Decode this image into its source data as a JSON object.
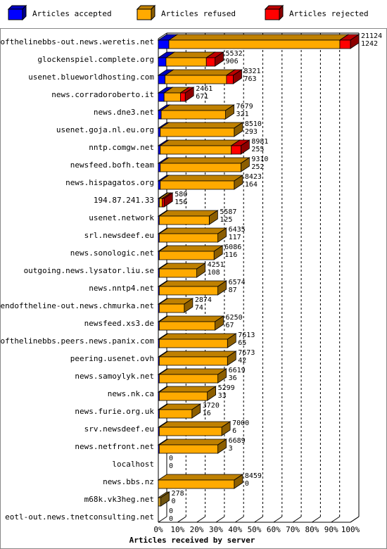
{
  "chart_data": {
    "type": "bar",
    "orientation": "horizontal",
    "stacked": true,
    "style": "3d",
    "title": "",
    "xlabel": "Articles received by server",
    "ylabel": "",
    "xlim": [
      0,
      100
    ],
    "x_ticks": [
      "0%",
      "10%",
      "20%",
      "30%",
      "40%",
      "50%",
      "60%",
      "70%",
      "80%",
      "90%",
      "100%"
    ],
    "grid": "vertical dashed",
    "legend_position": "top",
    "legend": [
      {
        "label": "Articles accepted",
        "color": "#0000ff"
      },
      {
        "label": "Articles refused",
        "color": "#ffaa00"
      },
      {
        "label": "Articles rejected",
        "color": "#ff0000"
      }
    ],
    "rows": [
      {
        "server": "endofthelinebbs-out.news.weretis.net",
        "accepted_pct": 5.5,
        "refused_pct": 89.0,
        "rejected_pct": 5.5,
        "top_label": "21124",
        "bottom_label": "1242"
      },
      {
        "server": "glockenspiel.complete.org",
        "accepted_pct": 4.0,
        "refused_pct": 21.0,
        "rejected_pct": 4.5,
        "top_label": "5532",
        "bottom_label": "906"
      },
      {
        "server": "usenet.blueworldhosting.com",
        "accepted_pct": 3.5,
        "refused_pct": 32.0,
        "rejected_pct": 3.5,
        "top_label": "8321",
        "bottom_label": "763"
      },
      {
        "server": "news.corradoroberto.it",
        "accepted_pct": 3.0,
        "refused_pct": 8.5,
        "rejected_pct": 2.5,
        "top_label": "2461",
        "bottom_label": "671"
      },
      {
        "server": "news.dne3.net",
        "accepted_pct": 1.5,
        "refused_pct": 33.5,
        "rejected_pct": 0,
        "top_label": "7679",
        "bottom_label": "321"
      },
      {
        "server": "usenet.goja.nl.eu.org",
        "accepted_pct": 1.0,
        "refused_pct": 38.5,
        "rejected_pct": 0,
        "top_label": "8510",
        "bottom_label": "293"
      },
      {
        "server": "nntp.comgw.net",
        "accepted_pct": 1.0,
        "refused_pct": 37.0,
        "rejected_pct": 5.0,
        "top_label": "8981",
        "bottom_label": "255"
      },
      {
        "server": "newsfeed.bofh.team",
        "accepted_pct": 1.0,
        "refused_pct": 42.0,
        "rejected_pct": 0,
        "top_label": "9310",
        "bottom_label": "252"
      },
      {
        "server": "news.hispagatos.org",
        "accepted_pct": 1.0,
        "refused_pct": 38.5,
        "rejected_pct": 0,
        "top_label": "8423",
        "bottom_label": "164"
      },
      {
        "server": "194.87.241.33",
        "accepted_pct": 0.5,
        "refused_pct": 1.5,
        "rejected_pct": 1.0,
        "top_label": "580",
        "bottom_label": "156"
      },
      {
        "server": "usenet.network",
        "accepted_pct": 0.5,
        "refused_pct": 26.0,
        "rejected_pct": 0,
        "top_label": "5587",
        "bottom_label": "125"
      },
      {
        "server": "srl.newsdeef.eu",
        "accepted_pct": 0.5,
        "refused_pct": 30.5,
        "rejected_pct": 0,
        "top_label": "6435",
        "bottom_label": "117"
      },
      {
        "server": "news.sonologic.net",
        "accepted_pct": 0.5,
        "refused_pct": 28.5,
        "rejected_pct": 0,
        "top_label": "6086",
        "bottom_label": "116"
      },
      {
        "server": "outgoing.news.lysator.liu.se",
        "accepted_pct": 0.5,
        "refused_pct": 19.5,
        "rejected_pct": 0,
        "top_label": "4251",
        "bottom_label": "108"
      },
      {
        "server": "news.nntp4.net",
        "accepted_pct": 0.5,
        "refused_pct": 30.5,
        "rejected_pct": 0,
        "top_label": "6574",
        "bottom_label": "87"
      },
      {
        "server": "endoftheline-out.news.chmurka.net",
        "accepted_pct": 0.5,
        "refused_pct": 13.0,
        "rejected_pct": 0,
        "top_label": "2874",
        "bottom_label": "74"
      },
      {
        "server": "newsfeed.xs3.de",
        "accepted_pct": 0.5,
        "refused_pct": 29.0,
        "rejected_pct": 0,
        "top_label": "6250",
        "bottom_label": "67"
      },
      {
        "server": "endofthelinebbs.peers.news.panix.com",
        "accepted_pct": 0.5,
        "refused_pct": 35.5,
        "rejected_pct": 0,
        "top_label": "7613",
        "bottom_label": "65"
      },
      {
        "server": "peering.usenet.ovh",
        "accepted_pct": 0.5,
        "refused_pct": 35.5,
        "rejected_pct": 0,
        "top_label": "7673",
        "bottom_label": "42"
      },
      {
        "server": "news.samoylyk.net",
        "accepted_pct": 0.5,
        "refused_pct": 30.5,
        "rejected_pct": 0,
        "top_label": "6619",
        "bottom_label": "36"
      },
      {
        "server": "news.nk.ca",
        "accepted_pct": 0.5,
        "refused_pct": 25.0,
        "rejected_pct": 0,
        "top_label": "5299",
        "bottom_label": "33"
      },
      {
        "server": "news.furie.org.uk",
        "accepted_pct": 0.5,
        "refused_pct": 17.0,
        "rejected_pct": 0,
        "top_label": "3720",
        "bottom_label": "16"
      },
      {
        "server": "srv.newsdeef.eu",
        "accepted_pct": 0.5,
        "refused_pct": 32.5,
        "rejected_pct": 0,
        "top_label": "7000",
        "bottom_label": "6"
      },
      {
        "server": "news.netfront.net",
        "accepted_pct": 0.5,
        "refused_pct": 30.5,
        "rejected_pct": 0,
        "top_label": "6689",
        "bottom_label": "3"
      },
      {
        "server": "localhost",
        "accepted_pct": 0,
        "refused_pct": 0,
        "rejected_pct": 0,
        "top_label": "0",
        "bottom_label": "0"
      },
      {
        "server": "news.bbs.nz",
        "accepted_pct": 0,
        "refused_pct": 39.5,
        "rejected_pct": 0,
        "top_label": "8459",
        "bottom_label": "0"
      },
      {
        "server": "m68k.vk3heg.net",
        "accepted_pct": 0,
        "refused_pct": 1.3,
        "rejected_pct": 0,
        "top_label": "278",
        "bottom_label": "0"
      },
      {
        "server": "eotl-out.news.tnetconsulting.net",
        "accepted_pct": 0,
        "refused_pct": 0,
        "rejected_pct": 0,
        "top_label": "0",
        "bottom_label": "0"
      }
    ]
  }
}
